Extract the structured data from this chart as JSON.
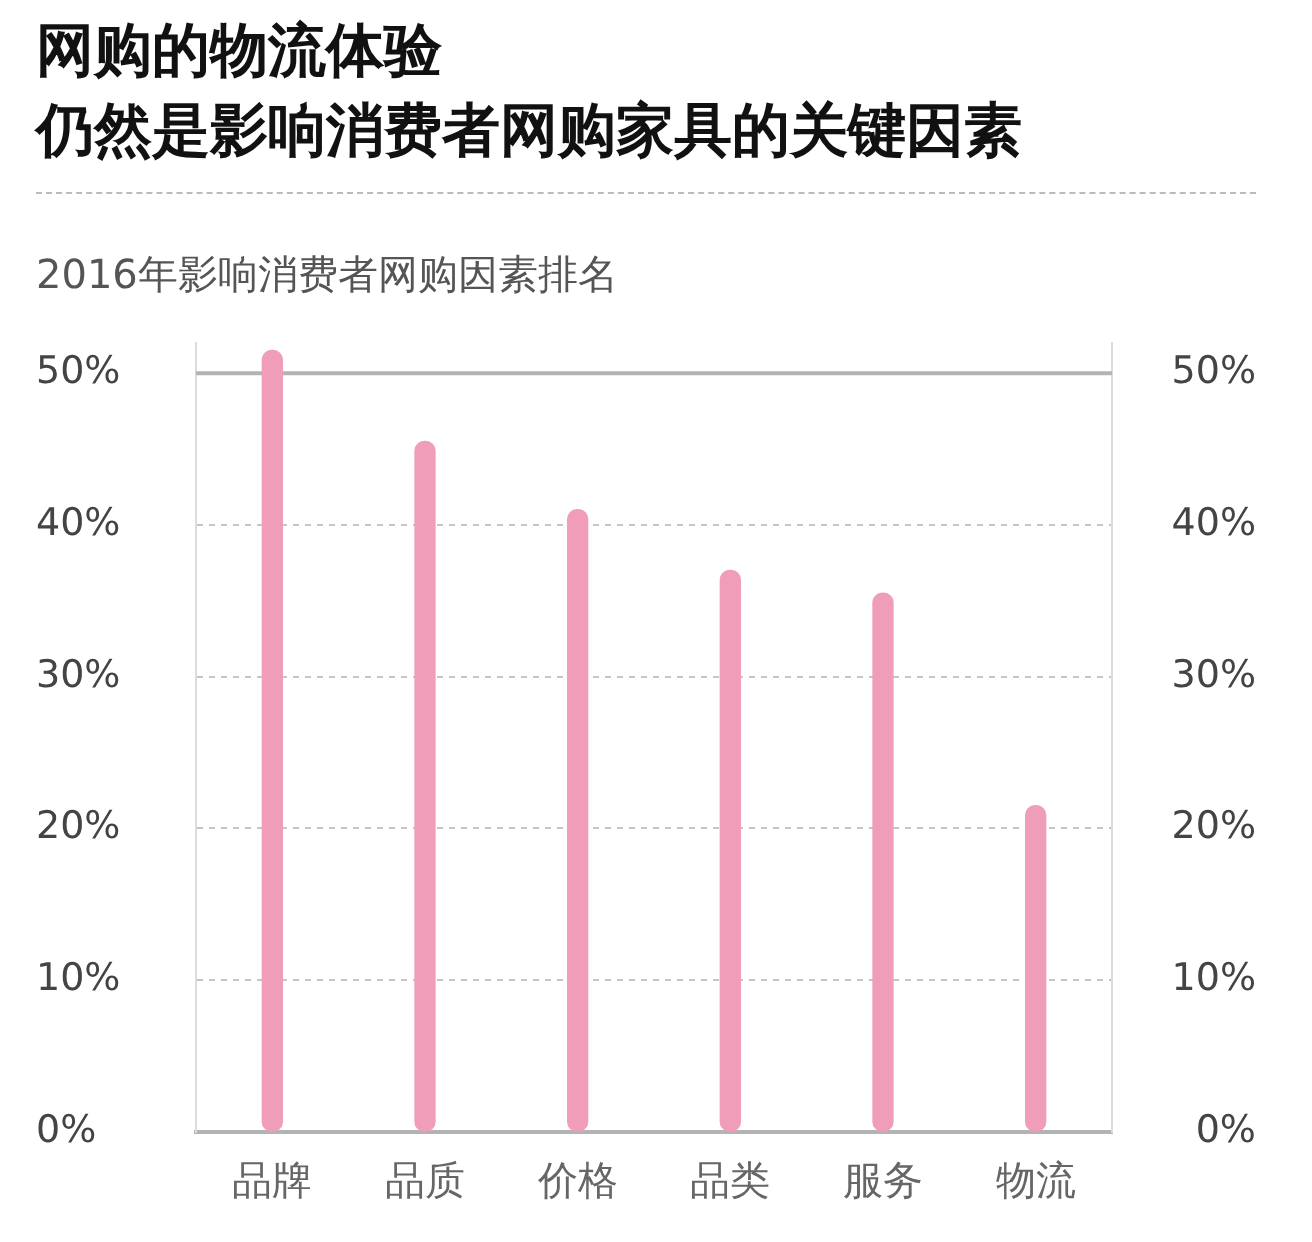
{
  "chart_data": {
    "type": "bar",
    "title": "网购的物流体验",
    "subtitle": "仍然是影响消费者网购家具的关键因素",
    "annotations": [
      "2016年影响消费者网购因素排名"
    ],
    "categories": [
      "品牌",
      "品质",
      "价格",
      "品类",
      "服务",
      "物流"
    ],
    "values": [
      51.5,
      45.5,
      41,
      37,
      35.5,
      21.5
    ],
    "color": "#f09db9",
    "ylim": [
      0,
      52
    ],
    "yticks": [
      {
        "value": 0,
        "label": "0%"
      },
      {
        "value": 10,
        "label": "10%"
      },
      {
        "value": 20,
        "label": "20%"
      },
      {
        "value": 30,
        "label": "30%"
      },
      {
        "value": 40,
        "label": "40%"
      },
      {
        "value": 50,
        "label": "50%"
      }
    ],
    "y2lim": [
      0,
      52
    ],
    "y2ticks": [
      {
        "value": 0,
        "label": "0%"
      },
      {
        "value": 10,
        "label": "10%"
      },
      {
        "value": 20,
        "label": "20%"
      },
      {
        "value": 30,
        "label": "30%"
      },
      {
        "value": 40,
        "label": "40%"
      },
      {
        "value": 50,
        "label": "50%"
      }
    ],
    "ref_lines": [
      {
        "axis": "y",
        "value": 50,
        "color": "#b3b3b3",
        "line_style": "solid"
      }
    ],
    "grid": "y"
  }
}
